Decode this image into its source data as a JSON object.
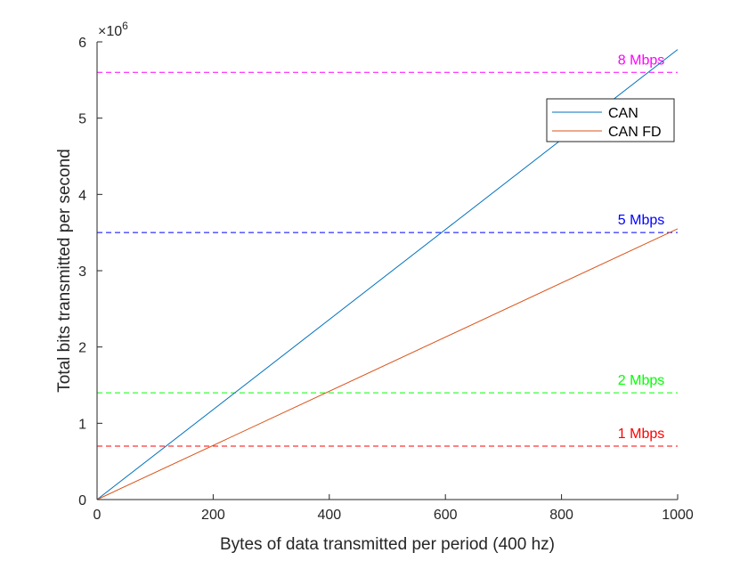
{
  "chart_data": {
    "type": "line",
    "title": "",
    "xlabel": "Bytes of data transmitted per period (400 hz)",
    "ylabel": "Total bits transmitted per second",
    "xlim": [
      0,
      1000
    ],
    "ylim": [
      0,
      6000000
    ],
    "xticks": [
      0,
      200,
      400,
      600,
      800,
      1000
    ],
    "xtick_labels": [
      "0",
      "200",
      "400",
      "600",
      "800",
      "1000"
    ],
    "yticks": [
      0,
      1000000,
      2000000,
      3000000,
      4000000,
      5000000,
      6000000
    ],
    "ytick_labels": [
      "0",
      "1",
      "2",
      "3",
      "4",
      "5",
      "6"
    ],
    "y_exponent": {
      "base": "×10",
      "power": "6"
    },
    "grid": false,
    "legend_position": "top-right",
    "series": [
      {
        "name": "CAN",
        "color": "#0072BD",
        "x": [
          0,
          1000
        ],
        "y": [
          0,
          5900000
        ]
      },
      {
        "name": "CAN FD",
        "color": "#D95319",
        "x": [
          0,
          1000
        ],
        "y": [
          0,
          3550000
        ]
      }
    ],
    "reference_lines": [
      {
        "label": "8 Mbps",
        "y": 5600000,
        "color": "#FF00FF",
        "text_color": "#FF00FF"
      },
      {
        "label": "5 Mbps",
        "y": 3500000,
        "color": "#0000FF",
        "text_color": "#0000FF"
      },
      {
        "label": "2 Mbps",
        "y": 1400000,
        "color": "#00FF00",
        "text_color": "#00FF00"
      },
      {
        "label": "1 Mbps",
        "y": 700000,
        "color": "#FF0000",
        "text_color": "#FF0000"
      }
    ]
  }
}
